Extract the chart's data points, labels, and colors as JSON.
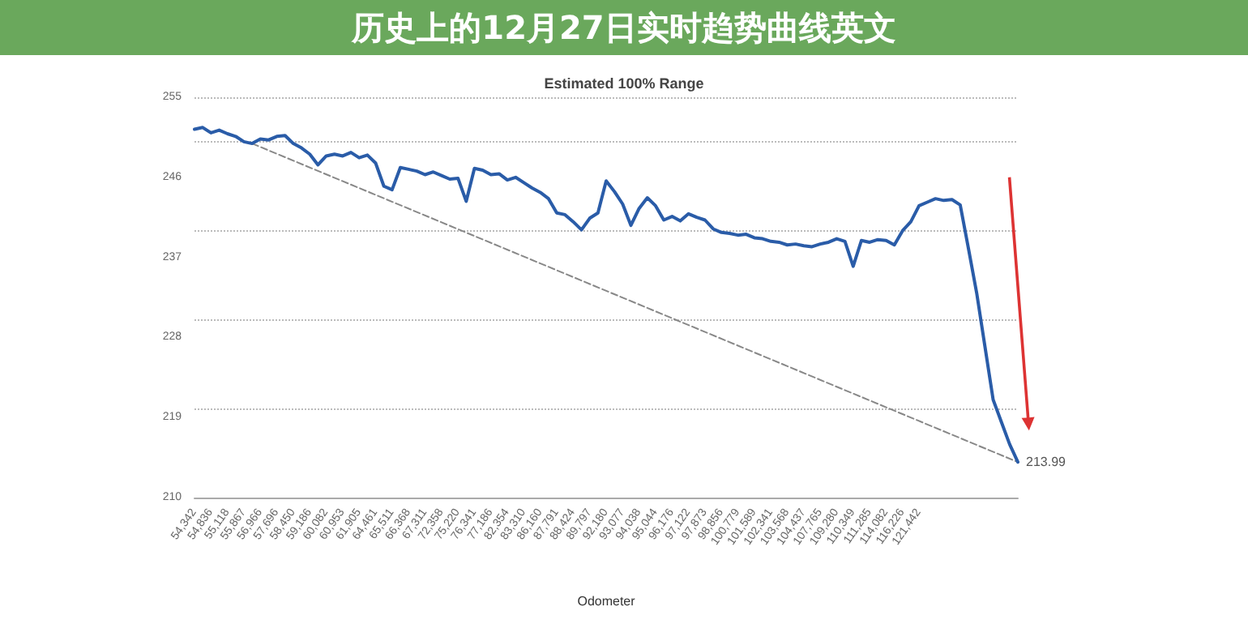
{
  "chart_data": {
    "type": "line",
    "title": "Estimated 100% Range",
    "xlabel": "Odometer",
    "annotations": [
      "历史上的12月27日实时趋势曲线英文"
    ],
    "categories": [
      "54,342",
      null,
      "54,836",
      null,
      "55,118",
      null,
      "55,867",
      null,
      "56,966",
      null,
      "57,696",
      null,
      "58,450",
      null,
      "59,186",
      null,
      "60,082",
      null,
      "60,953",
      null,
      "61,905",
      null,
      "64,461",
      null,
      "65,511",
      null,
      "66,368",
      null,
      "67,311",
      null,
      "72,358",
      null,
      "75,220",
      null,
      "76,341",
      null,
      "77,186",
      null,
      "82,354",
      null,
      "83,310",
      null,
      "86,160",
      null,
      "87,791",
      null,
      "88,424",
      null,
      "89,797",
      null,
      "92,180",
      null,
      "93,077",
      null,
      "94,038",
      null,
      "95,044",
      null,
      "96,176",
      null,
      "97,122",
      null,
      "97,873",
      null,
      "98,856",
      null,
      "100,779",
      null,
      "101,589",
      null,
      "102,341",
      null,
      "103,568",
      null,
      "104,437",
      null,
      "107,765",
      null,
      "109,280",
      null,
      "110,349",
      null,
      "111,285",
      null,
      "114,082",
      null,
      "116,226",
      null,
      "121,442",
      null,
      null,
      null,
      null,
      null,
      null,
      null,
      null,
      null,
      null,
      null,
      null
    ],
    "series": [
      {
        "color": "#2a5ca8",
        "marker": "none",
        "line_style": "solid",
        "value_labels": [
          null,
          null,
          null,
          null,
          null,
          null,
          null,
          null,
          null,
          null,
          null,
          null,
          null,
          null,
          null,
          null,
          null,
          null,
          null,
          null,
          null,
          null,
          null,
          null,
          null,
          null,
          null,
          null,
          null,
          null,
          null,
          null,
          null,
          null,
          null,
          null,
          null,
          null,
          null,
          null,
          null,
          null,
          null,
          null,
          null,
          null,
          null,
          null,
          null,
          null,
          null,
          null,
          null,
          null,
          null,
          null,
          null,
          null,
          null,
          null,
          null,
          null,
          null,
          null,
          null,
          null,
          null,
          null,
          null,
          null,
          null,
          null,
          null,
          null,
          null,
          null,
          null,
          null,
          null,
          null,
          null,
          null,
          null,
          null,
          null,
          null,
          null,
          null,
          null,
          null,
          null,
          null,
          null,
          null,
          null,
          null,
          null,
          null,
          null,
          null,
          "213.99"
        ],
        "values": [
          251.4,
          251.6,
          251.0,
          251.3,
          250.9,
          250.6,
          250.0,
          249.8,
          250.3,
          250.2,
          250.6,
          250.7,
          249.8,
          249.3,
          248.6,
          247.4,
          248.4,
          248.6,
          248.4,
          248.8,
          248.2,
          248.5,
          247.6,
          245.0,
          244.6,
          247.1,
          246.9,
          246.7,
          246.3,
          246.6,
          246.2,
          245.8,
          245.9,
          243.3,
          247.0,
          246.8,
          246.3,
          246.4,
          245.7,
          246.0,
          245.4,
          244.8,
          244.3,
          243.6,
          242.0,
          241.8,
          241.0,
          240.1,
          241.4,
          242.0,
          245.6,
          244.4,
          243.0,
          240.6,
          242.5,
          243.7,
          242.8,
          241.2,
          241.6,
          241.1,
          241.9,
          241.5,
          241.2,
          240.2,
          239.8,
          239.7,
          239.5,
          239.6,
          239.2,
          239.1,
          238.8,
          238.7,
          238.4,
          238.5,
          238.3,
          238.2,
          238.5,
          238.7,
          239.1,
          238.8,
          236.0,
          238.9,
          238.7,
          239.0,
          238.9,
          238.4,
          240.0,
          241.0,
          242.8,
          243.2,
          243.6,
          243.4,
          243.5,
          242.9,
          238.0,
          233.0,
          227.0,
          221.0,
          218.5,
          216.0,
          213.99
        ]
      },
      {
        "color": "#888888",
        "marker": "none",
        "line_style": "dashed",
        "values": [
          null,
          null,
          null,
          null,
          null,
          null,
          null,
          249.8,
          null,
          null,
          null,
          null,
          null,
          null,
          null,
          null,
          null,
          null,
          null,
          null,
          null,
          null,
          null,
          null,
          null,
          null,
          null,
          null,
          null,
          null,
          null,
          null,
          null,
          null,
          null,
          null,
          null,
          null,
          null,
          null,
          null,
          null,
          null,
          null,
          null,
          null,
          null,
          null,
          null,
          null,
          null,
          null,
          null,
          null,
          null,
          null,
          null,
          null,
          null,
          null,
          null,
          null,
          null,
          null,
          null,
          null,
          null,
          null,
          null,
          null,
          null,
          null,
          null,
          null,
          null,
          null,
          null,
          null,
          null,
          null,
          null,
          null,
          null,
          null,
          null,
          null,
          null,
          null,
          null,
          null,
          null,
          null,
          null,
          null,
          null,
          null,
          null,
          null,
          null,
          null,
          213.99
        ]
      }
    ],
    "ylim": [
      210,
      255
    ],
    "yticks": [
      210,
      219,
      228,
      237,
      246,
      255
    ],
    "grid": "y"
  }
}
